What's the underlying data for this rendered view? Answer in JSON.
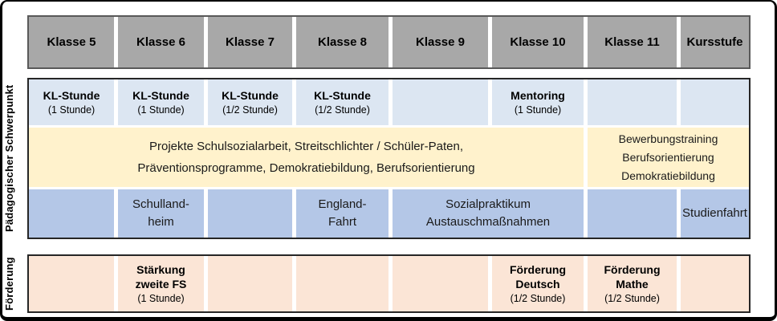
{
  "columns": [
    "Klasse 5",
    "Klasse 6",
    "Klasse 7",
    "Klasse 8",
    "Klasse 9",
    "Klasse 10",
    "Klasse 11",
    "Kursstufe"
  ],
  "row_groups": {
    "pedagogical": "Pädagogischer Schwerpunkt",
    "support": "Förderung"
  },
  "kl_row": {
    "cells": [
      {
        "title": "KL-Stunde",
        "sub": "(1 Stunde)"
      },
      {
        "title": "KL-Stunde",
        "sub": "(1 Stunde)"
      },
      {
        "title": "KL-Stunde",
        "sub": "(1/2 Stunde)"
      },
      {
        "title": "KL-Stunde",
        "sub": "(1/2 Stunde)"
      },
      {
        "title": "",
        "sub": ""
      },
      {
        "title": "Mentoring",
        "sub": "(1 Stunde)"
      },
      {
        "title": "",
        "sub": ""
      },
      {
        "title": "",
        "sub": ""
      }
    ]
  },
  "projects_row": {
    "main_line1": "Projekte Schulsozialarbeit, Streitschlichter / Schüler-Paten,",
    "main_line2": "Präventionsprogramme, Demokratiebildung, Berufsorientierung",
    "upper_line1": "Bewerbungstraining",
    "upper_line2": "Berufsorientierung",
    "upper_line3": "Demokratiebildung"
  },
  "trips_row": {
    "schullandheim": {
      "line1": "Schulland-",
      "line2": "heim"
    },
    "england": {
      "line1": "England-",
      "line2": "Fahrt"
    },
    "sozialpraktikum": {
      "line1": "Sozialpraktikum",
      "line2": "Austauschmaßnahmen"
    },
    "studienfahrt": "Studienfahrt"
  },
  "support_row": {
    "staerkung": {
      "line1": "Stärkung",
      "line2": "zweite FS",
      "sub": "(1 Stunde)"
    },
    "deutsch": {
      "line1": "Förderung",
      "line2": "Deutsch",
      "sub": "(1/2 Stunde)"
    },
    "mathe": {
      "line1": "Förderung",
      "line2": "Mathe",
      "sub": "(1/2 Stunde)"
    }
  },
  "colors": {
    "header_bg": "#a8a8a8",
    "kl_row_bg": "#dce6f2",
    "projects_bg": "#fff2cc",
    "trips_bg": "#b4c7e7",
    "support_bg": "#fbe5d6"
  }
}
